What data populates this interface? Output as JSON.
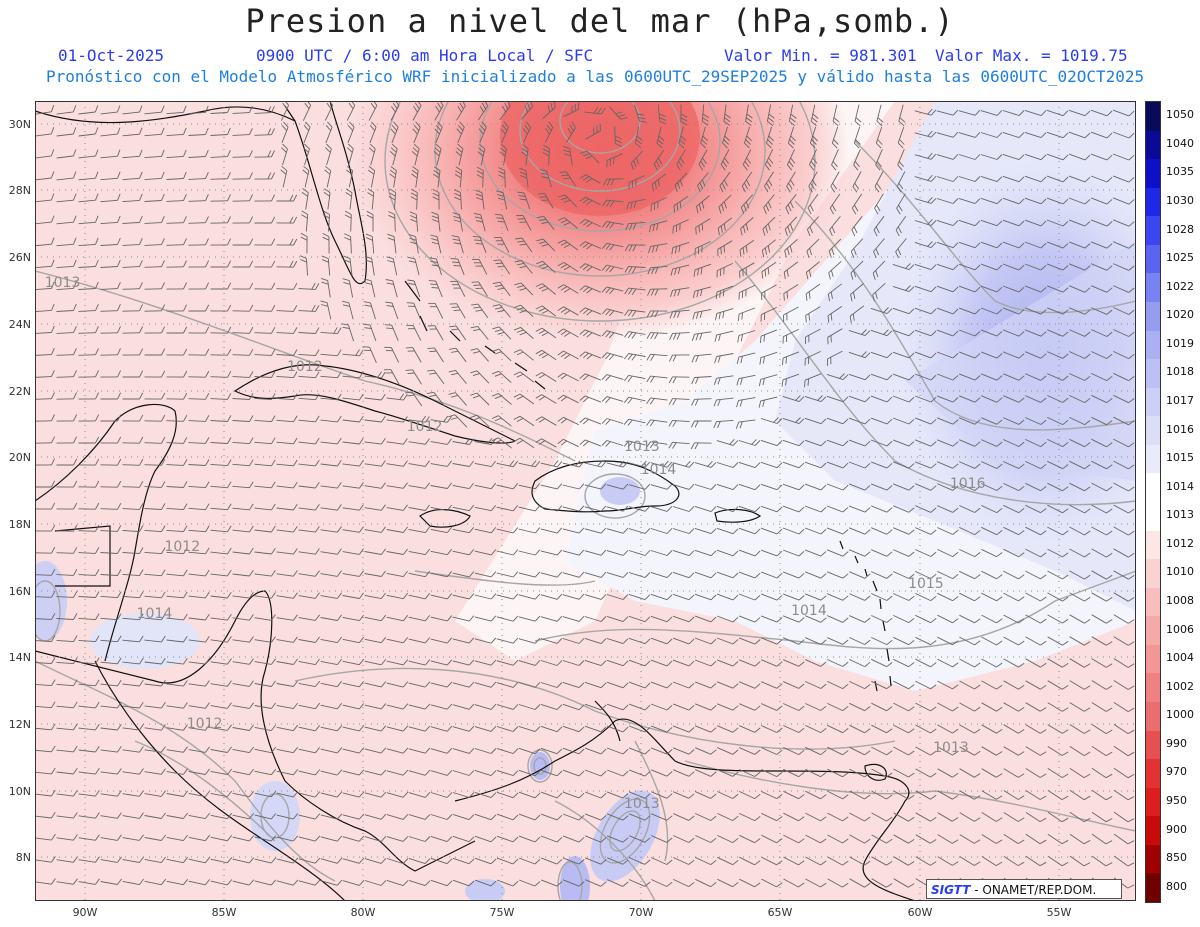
{
  "header": {
    "title": "Presion a nivel del mar (hPa,somb.)",
    "date": "01-Oct-2025",
    "time": "0900 UTC / 6:00 am Hora Local / SFC",
    "min_label": "Valor Min. = 981.301",
    "max_label": "Valor Max. = 1019.75",
    "forecast": "Pronóstico con el Modelo Atmosférico WRF inicializado a las 0600UTC_29SEP2025 y válido hasta las  0600UTC_02OCT2025"
  },
  "axes": {
    "lat_labels": [
      "30N",
      "28N",
      "26N",
      "24N",
      "22N",
      "20N",
      "18N",
      "16N",
      "14N",
      "12N",
      "10N",
      "8N"
    ],
    "lon_labels": [
      "90W",
      "85W",
      "80W",
      "75W",
      "70W",
      "65W",
      "60W",
      "55W"
    ]
  },
  "colorbar": {
    "labels": [
      "1050",
      "1040",
      "1035",
      "1030",
      "1028",
      "1025",
      "1022",
      "1020",
      "1019",
      "1018",
      "1017",
      "1016",
      "1015",
      "1014",
      "1013",
      "1012",
      "1010",
      "1008",
      "1006",
      "1004",
      "1002",
      "1000",
      "990",
      "970",
      "950",
      "900",
      "850",
      "800"
    ],
    "colors": [
      "#0a0a5a",
      "#0a0a96",
      "#0f0fc8",
      "#1e28e6",
      "#3c46f0",
      "#5a64f0",
      "#7882f0",
      "#969cf0",
      "#aab0f2",
      "#bcc0f4",
      "#ccd0f6",
      "#dcdef8",
      "#eaebfa",
      "#ffffff",
      "#ffffff",
      "#fde6e6",
      "#fbd2d2",
      "#f8bebe",
      "#f5aaaa",
      "#f29696",
      "#ee8282",
      "#ea6e6e",
      "#e65050",
      "#e23232",
      "#dc1e1e",
      "#c80a0a",
      "#a00000",
      "#6e0000"
    ]
  },
  "isobars": [
    {
      "label": "1013",
      "lat": 25.2,
      "lon": -90.8
    },
    {
      "label": "1012",
      "lat": 22.7,
      "lon": -82.1
    },
    {
      "label": "1012",
      "lat": 20.9,
      "lon": -77.8
    },
    {
      "label": "1013",
      "lat": 20.3,
      "lon": -70.0
    },
    {
      "label": "1014",
      "lat": 19.6,
      "lon": -69.4
    },
    {
      "label": "1016",
      "lat": 19.2,
      "lon": -58.3
    },
    {
      "label": "1012",
      "lat": 17.3,
      "lon": -86.5
    },
    {
      "label": "1015",
      "lat": 16.2,
      "lon": -59.8
    },
    {
      "label": "1014",
      "lat": 15.4,
      "lon": -64.0
    },
    {
      "label": "1014",
      "lat": 15.3,
      "lon": -87.5
    },
    {
      "label": "1012",
      "lat": 12.0,
      "lon": -85.7
    },
    {
      "label": "1013",
      "lat": 11.3,
      "lon": -58.9
    },
    {
      "label": "1013",
      "lat": 9.6,
      "lon": -70.0
    }
  ],
  "credit": {
    "logo": "SIGTT",
    "text": "- ONAMET/REP.DOM."
  }
}
